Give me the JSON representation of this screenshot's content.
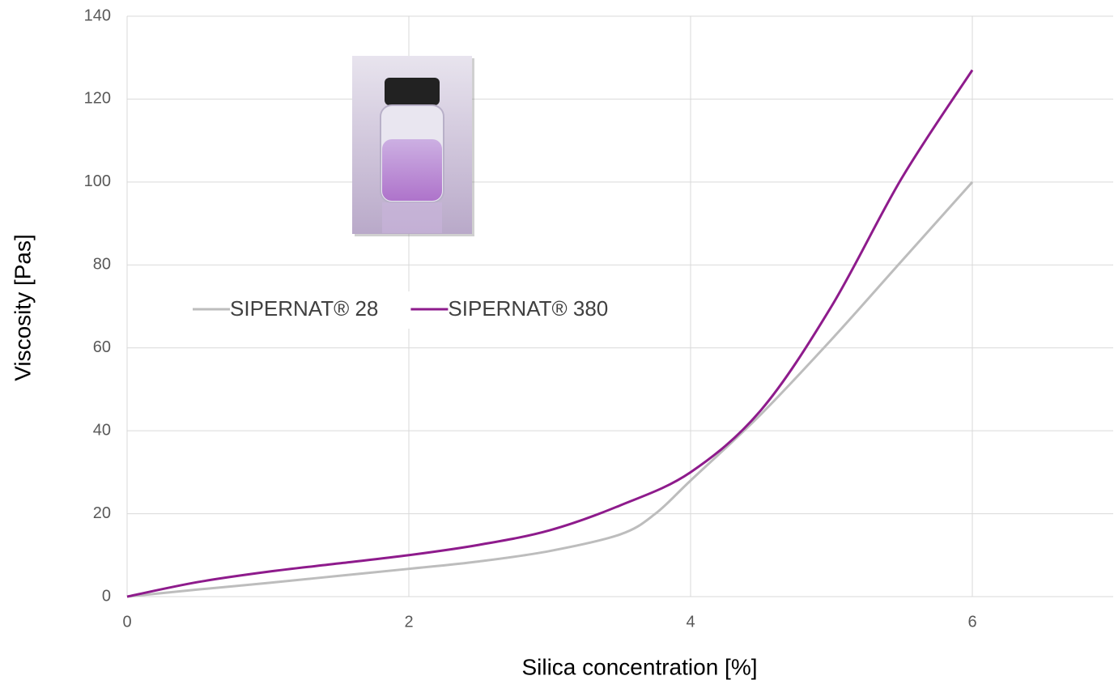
{
  "chart_data": {
    "type": "line",
    "x_label": "Silica concentration [%]",
    "y_label": "Viscosity [Pas]",
    "xlim": [
      0,
      7
    ],
    "ylim": [
      0,
      140
    ],
    "xticks": [
      0,
      2,
      4,
      6
    ],
    "yticks": [
      0,
      20,
      40,
      60,
      80,
      100,
      120,
      140
    ],
    "grid": true,
    "smooth": true,
    "series": [
      {
        "name": "SIPERNAT® 28",
        "color": "#bdbdbd",
        "x": [
          0,
          0.5,
          1,
          1.5,
          2,
          2.5,
          3,
          3.5,
          3.75,
          4,
          4.5,
          5,
          5.5,
          6
        ],
        "values": [
          0,
          1.7,
          3.3,
          5,
          6.7,
          8.5,
          11,
          15,
          20,
          28,
          44,
          62,
          81,
          100
        ]
      },
      {
        "name": "SIPERNAT® 380",
        "color": "#8e1b8c",
        "x": [
          0,
          0.5,
          1,
          1.5,
          2,
          2.5,
          3,
          3.5,
          4,
          4.5,
          5,
          5.5,
          6
        ],
        "values": [
          0,
          3.5,
          6,
          8,
          10,
          12.5,
          16,
          22,
          30,
          45,
          70,
          101,
          127
        ]
      }
    ]
  }
}
